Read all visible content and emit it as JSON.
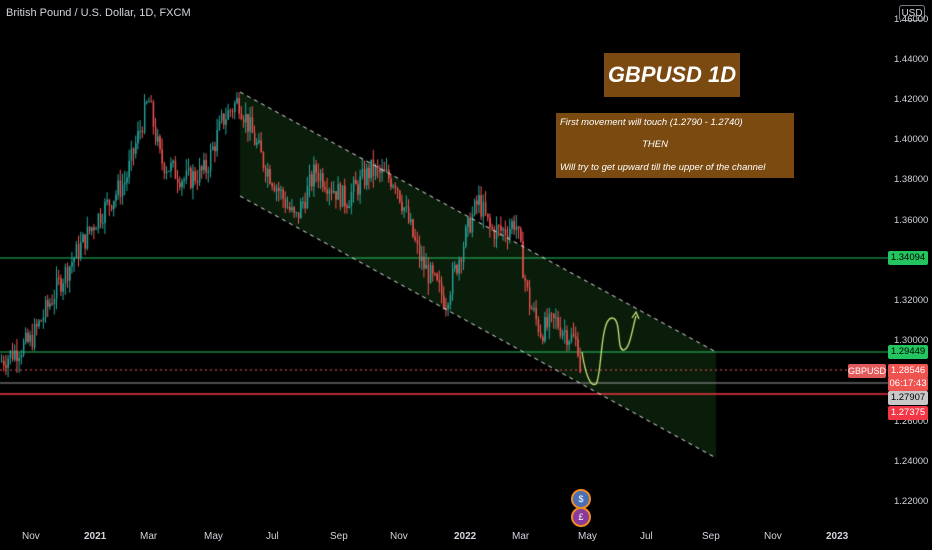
{
  "header": {
    "symbol_title": "British Pound / U.S. Dollar, 1D, FXCM",
    "currency": "USD"
  },
  "idea": {
    "title": "GBPUSD 1D",
    "note_line1": "First movement will touch (1.2790 - 1.2740)",
    "note_line2": "THEN",
    "note_line3": "Will try to get upward till the upper of the channel"
  },
  "price_scale": {
    "labels": [
      {
        "value": 1.46,
        "text": "1.46000"
      },
      {
        "value": 1.44,
        "text": "1.44000"
      },
      {
        "value": 1.42,
        "text": "1.42000"
      },
      {
        "value": 1.4,
        "text": "1.40000"
      },
      {
        "value": 1.38,
        "text": "1.38000"
      },
      {
        "value": 1.36,
        "text": "1.36000"
      },
      {
        "value": 1.32,
        "text": "1.32000"
      },
      {
        "value": 1.3,
        "text": "1.30000"
      },
      {
        "value": 1.26,
        "text": "1.26000"
      },
      {
        "value": 1.24,
        "text": "1.24000"
      },
      {
        "value": 1.22,
        "text": "1.22000"
      }
    ]
  },
  "time_axis": {
    "labels": [
      {
        "text": "Nov",
        "bold": false
      },
      {
        "text": "2021",
        "bold": true
      },
      {
        "text": "Mar",
        "bold": false
      },
      {
        "text": "May",
        "bold": false
      },
      {
        "text": "Jul",
        "bold": false
      },
      {
        "text": "Sep",
        "bold": false
      },
      {
        "text": "Nov",
        "bold": false
      },
      {
        "text": "2022",
        "bold": true
      },
      {
        "text": "Mar",
        "bold": false
      },
      {
        "text": "May",
        "bold": false
      },
      {
        "text": "Jul",
        "bold": false
      },
      {
        "text": "Sep",
        "bold": false
      },
      {
        "text": "Nov",
        "bold": false
      },
      {
        "text": "2023",
        "bold": true
      }
    ]
  },
  "levels": [
    {
      "value": 1.34094,
      "text": "1.34094",
      "color": "#22c55e"
    },
    {
      "value": 1.29449,
      "text": "1.29449",
      "color": "#22c55e"
    },
    {
      "value": 1.27907,
      "text": "1.27907",
      "color": "#c8c8c8"
    },
    {
      "value": 1.27375,
      "text": "1.27375",
      "color": "#f23645"
    }
  ],
  "last_price": {
    "symbol": "GBPUSD",
    "price": "1.28546",
    "countdown": "06:17:43",
    "value": 1.28546
  },
  "colors": {
    "up": "#26a69a",
    "down": "#ef5350",
    "channel": "#1b3a1b",
    "note_bg": "#7a4a10",
    "projection": "#c9e87a"
  },
  "event_icons": [
    "flag-us-icon",
    "flag-gb-icon"
  ]
}
